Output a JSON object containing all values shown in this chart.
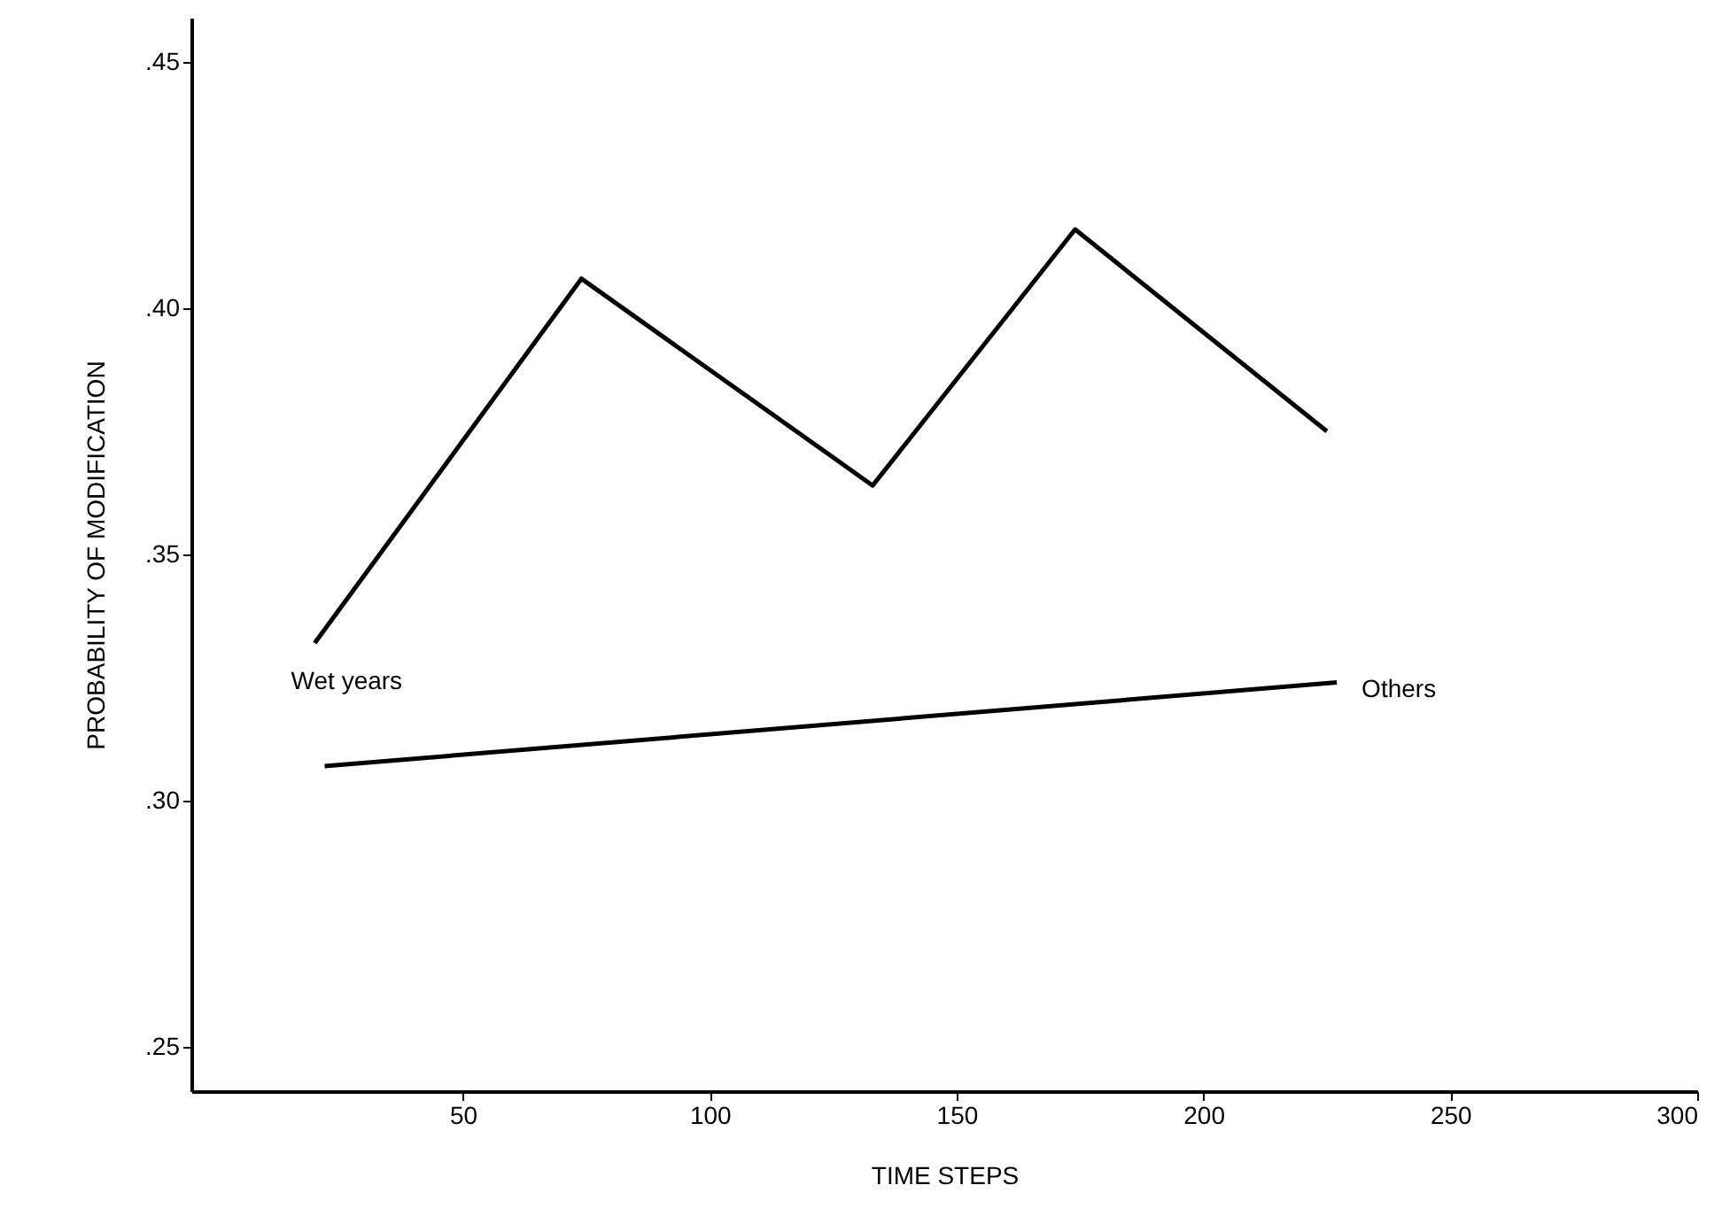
{
  "chart_data": {
    "type": "line",
    "xlabel": "TIME STEPS",
    "ylabel": "PROBABILITY OF MODIFICATION",
    "xlim": [
      -5,
      300
    ],
    "ylim": [
      0.241,
      0.459
    ],
    "xticks": [
      50,
      100,
      150,
      200,
      250,
      300
    ],
    "yticks": [
      {
        "value": 0.25,
        "label": ".25"
      },
      {
        "value": 0.3,
        "label": ".30"
      },
      {
        "value": 0.35,
        "label": ".35"
      },
      {
        "value": 0.4,
        "label": ".40"
      },
      {
        "value": 0.45,
        "label": ".45"
      }
    ],
    "series": [
      {
        "name": "Wet years",
        "color": "#000000",
        "x": [
          20,
          74,
          133,
          174,
          225
        ],
        "values": [
          0.332,
          0.406,
          0.364,
          0.416,
          0.375
        ]
      },
      {
        "name": "Others",
        "color": "#000000",
        "x": [
          22,
          227
        ],
        "values": [
          0.307,
          0.324
        ]
      }
    ],
    "grid": false,
    "legend": false,
    "marker": "none",
    "line_style": "solid"
  }
}
